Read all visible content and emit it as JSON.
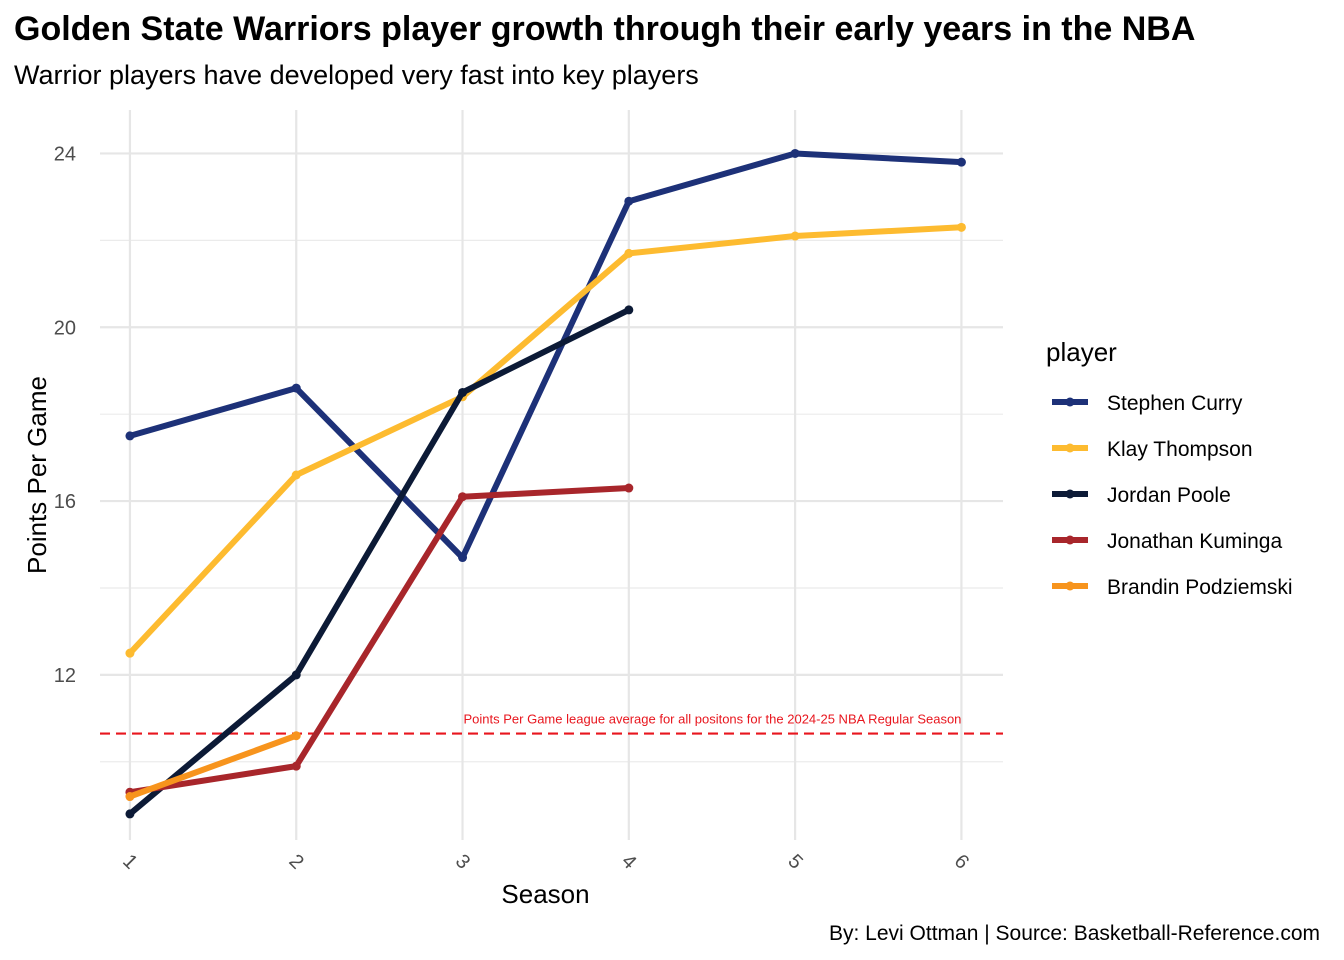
{
  "chart_data": {
    "type": "line",
    "title": "Golden State Warriors player growth through their early years in the NBA",
    "subtitle": "Warrior players have developed very fast into key players",
    "xlabel": "Season",
    "ylabel": "Points Per Game",
    "x_ticks": [
      "1",
      "2",
      "3",
      "4",
      "5",
      "6"
    ],
    "y_ticks": [
      "12",
      "16",
      "20",
      "24"
    ],
    "xlim": [
      0.82,
      6.25
    ],
    "ylim": [
      8.2,
      25.0
    ],
    "grid": true,
    "legend_title": "player",
    "legend_position": "right",
    "series": [
      {
        "name": "Stephen Curry",
        "color": "#1D3178",
        "x": [
          1,
          2,
          3,
          4,
          5,
          6
        ],
        "y": [
          17.5,
          18.6,
          14.7,
          22.9,
          24.0,
          23.8
        ]
      },
      {
        "name": "Klay Thompson",
        "color": "#FDBB30",
        "x": [
          1,
          2,
          3,
          4,
          5,
          6
        ],
        "y": [
          12.5,
          16.6,
          18.4,
          21.7,
          22.1,
          22.3
        ]
      },
      {
        "name": "Jordan Poole",
        "color": "#0C1A36",
        "x": [
          1,
          2,
          3,
          4
        ],
        "y": [
          8.8,
          12.0,
          18.5,
          20.4
        ]
      },
      {
        "name": "Jonathan Kuminga",
        "color": "#A8262B",
        "x": [
          1,
          2,
          3,
          4
        ],
        "y": [
          9.3,
          9.9,
          16.1,
          16.3
        ]
      },
      {
        "name": "Brandin Podziemski",
        "color": "#F7941D",
        "x": [
          1,
          2
        ],
        "y": [
          9.2,
          10.6
        ]
      }
    ],
    "reference_line": {
      "value": 10.65,
      "color": "#E8161E",
      "label": "Points Per Game league average for all positons for the 2024-25 NBA Regular Season"
    }
  },
  "caption": "By: Levi Ottman  |  Source: Basketball-Reference.com"
}
